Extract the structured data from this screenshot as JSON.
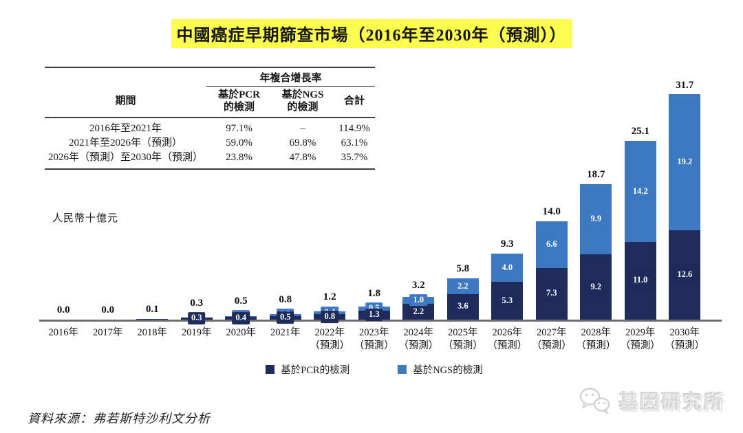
{
  "title": "中國癌症早期篩查市場（2016年至2030年（預測））",
  "table": {
    "cagr_header": "年複合增長率",
    "col_period": "期間",
    "col_pcr": "基於PCR\n的檢測",
    "col_ngs": "基於NGS\n的檢測",
    "col_total": "合計",
    "rows": [
      {
        "period": "2016年至2021年",
        "pcr": "97.1%",
        "ngs": "–",
        "total": "114.9%"
      },
      {
        "period": "2021年至2026年（預測）",
        "pcr": "59.0%",
        "ngs": "69.8%",
        "total": "63.1%"
      },
      {
        "period": "2026年（預測）至2030年（預測）",
        "pcr": "23.8%",
        "ngs": "47.8%",
        "total": "35.7%"
      }
    ]
  },
  "chart_data": {
    "type": "bar",
    "stacked": true,
    "title": "中國癌症早期篩查市場（2016年至2030年（預測））",
    "ylabel": "人民幣十億元",
    "xlabel": "",
    "ylim": [
      0,
      35.5
    ],
    "grid": false,
    "legend_position": "bottom",
    "categories": [
      "2016年",
      "2017年",
      "2018年",
      "2019年",
      "2020年",
      "2021年",
      "2022年",
      "2023年",
      "2024年",
      "2025年",
      "2026年",
      "2027年",
      "2028年",
      "2029年",
      "2030年"
    ],
    "category_notes": [
      "",
      "",
      "",
      "",
      "",
      "",
      "（預測）",
      "（預測）",
      "（預測）",
      "（預測）",
      "（預測）",
      "（預測）",
      "（預測）",
      "（預測）",
      "（預測）"
    ],
    "series": [
      {
        "name": "基於PCR的檢測",
        "color": "#1F2B5B",
        "values": [
          0.0,
          0.0,
          0.1,
          0.3,
          0.4,
          0.5,
          0.8,
          1.3,
          2.2,
          3.6,
          5.3,
          7.3,
          9.2,
          11.0,
          12.6
        ],
        "labels": [
          null,
          null,
          null,
          "0.3",
          "0.4",
          "0.5",
          "0.8",
          "1.3",
          "2.2",
          "3.6",
          "5.3",
          "7.3",
          "9.2",
          "11.0",
          "12.6"
        ]
      },
      {
        "name": "基於NGS的檢測",
        "color": "#3D79C0",
        "values": [
          0.0,
          0.0,
          0.0,
          0.0,
          0.1,
          0.3,
          0.4,
          0.5,
          1.0,
          2.2,
          4.0,
          6.6,
          9.9,
          14.2,
          19.2
        ],
        "labels": [
          null,
          null,
          null,
          null,
          "0.1",
          "0.3",
          "0.4",
          "0.5",
          "1.0",
          "2.2",
          "4.0",
          "6.6",
          "9.9",
          "14.2",
          "19.2"
        ]
      }
    ],
    "totals": [
      "0.0",
      "0.0",
      "0.1",
      "0.3",
      "0.5",
      "0.8",
      "1.2",
      "1.8",
      "3.2",
      "5.8",
      "9.3",
      "14.0",
      "18.7",
      "25.1",
      "31.7"
    ]
  },
  "legend": [
    {
      "label": "基於PCR的檢測",
      "color": "#1F2B5B"
    },
    {
      "label": "基於NGS的檢測",
      "color": "#3D79C0"
    }
  ],
  "unit_label": "人民幣十億元",
  "source": "資料來源：弗若斯特沙利文分析",
  "watermark": {
    "text": "基因研究所",
    "icon": "wechat-icon"
  },
  "colors": {
    "pcr": "#1F2B5B",
    "ngs": "#3D79C0",
    "highlight": "#FDFD4F",
    "axis": "#6E6E70"
  }
}
